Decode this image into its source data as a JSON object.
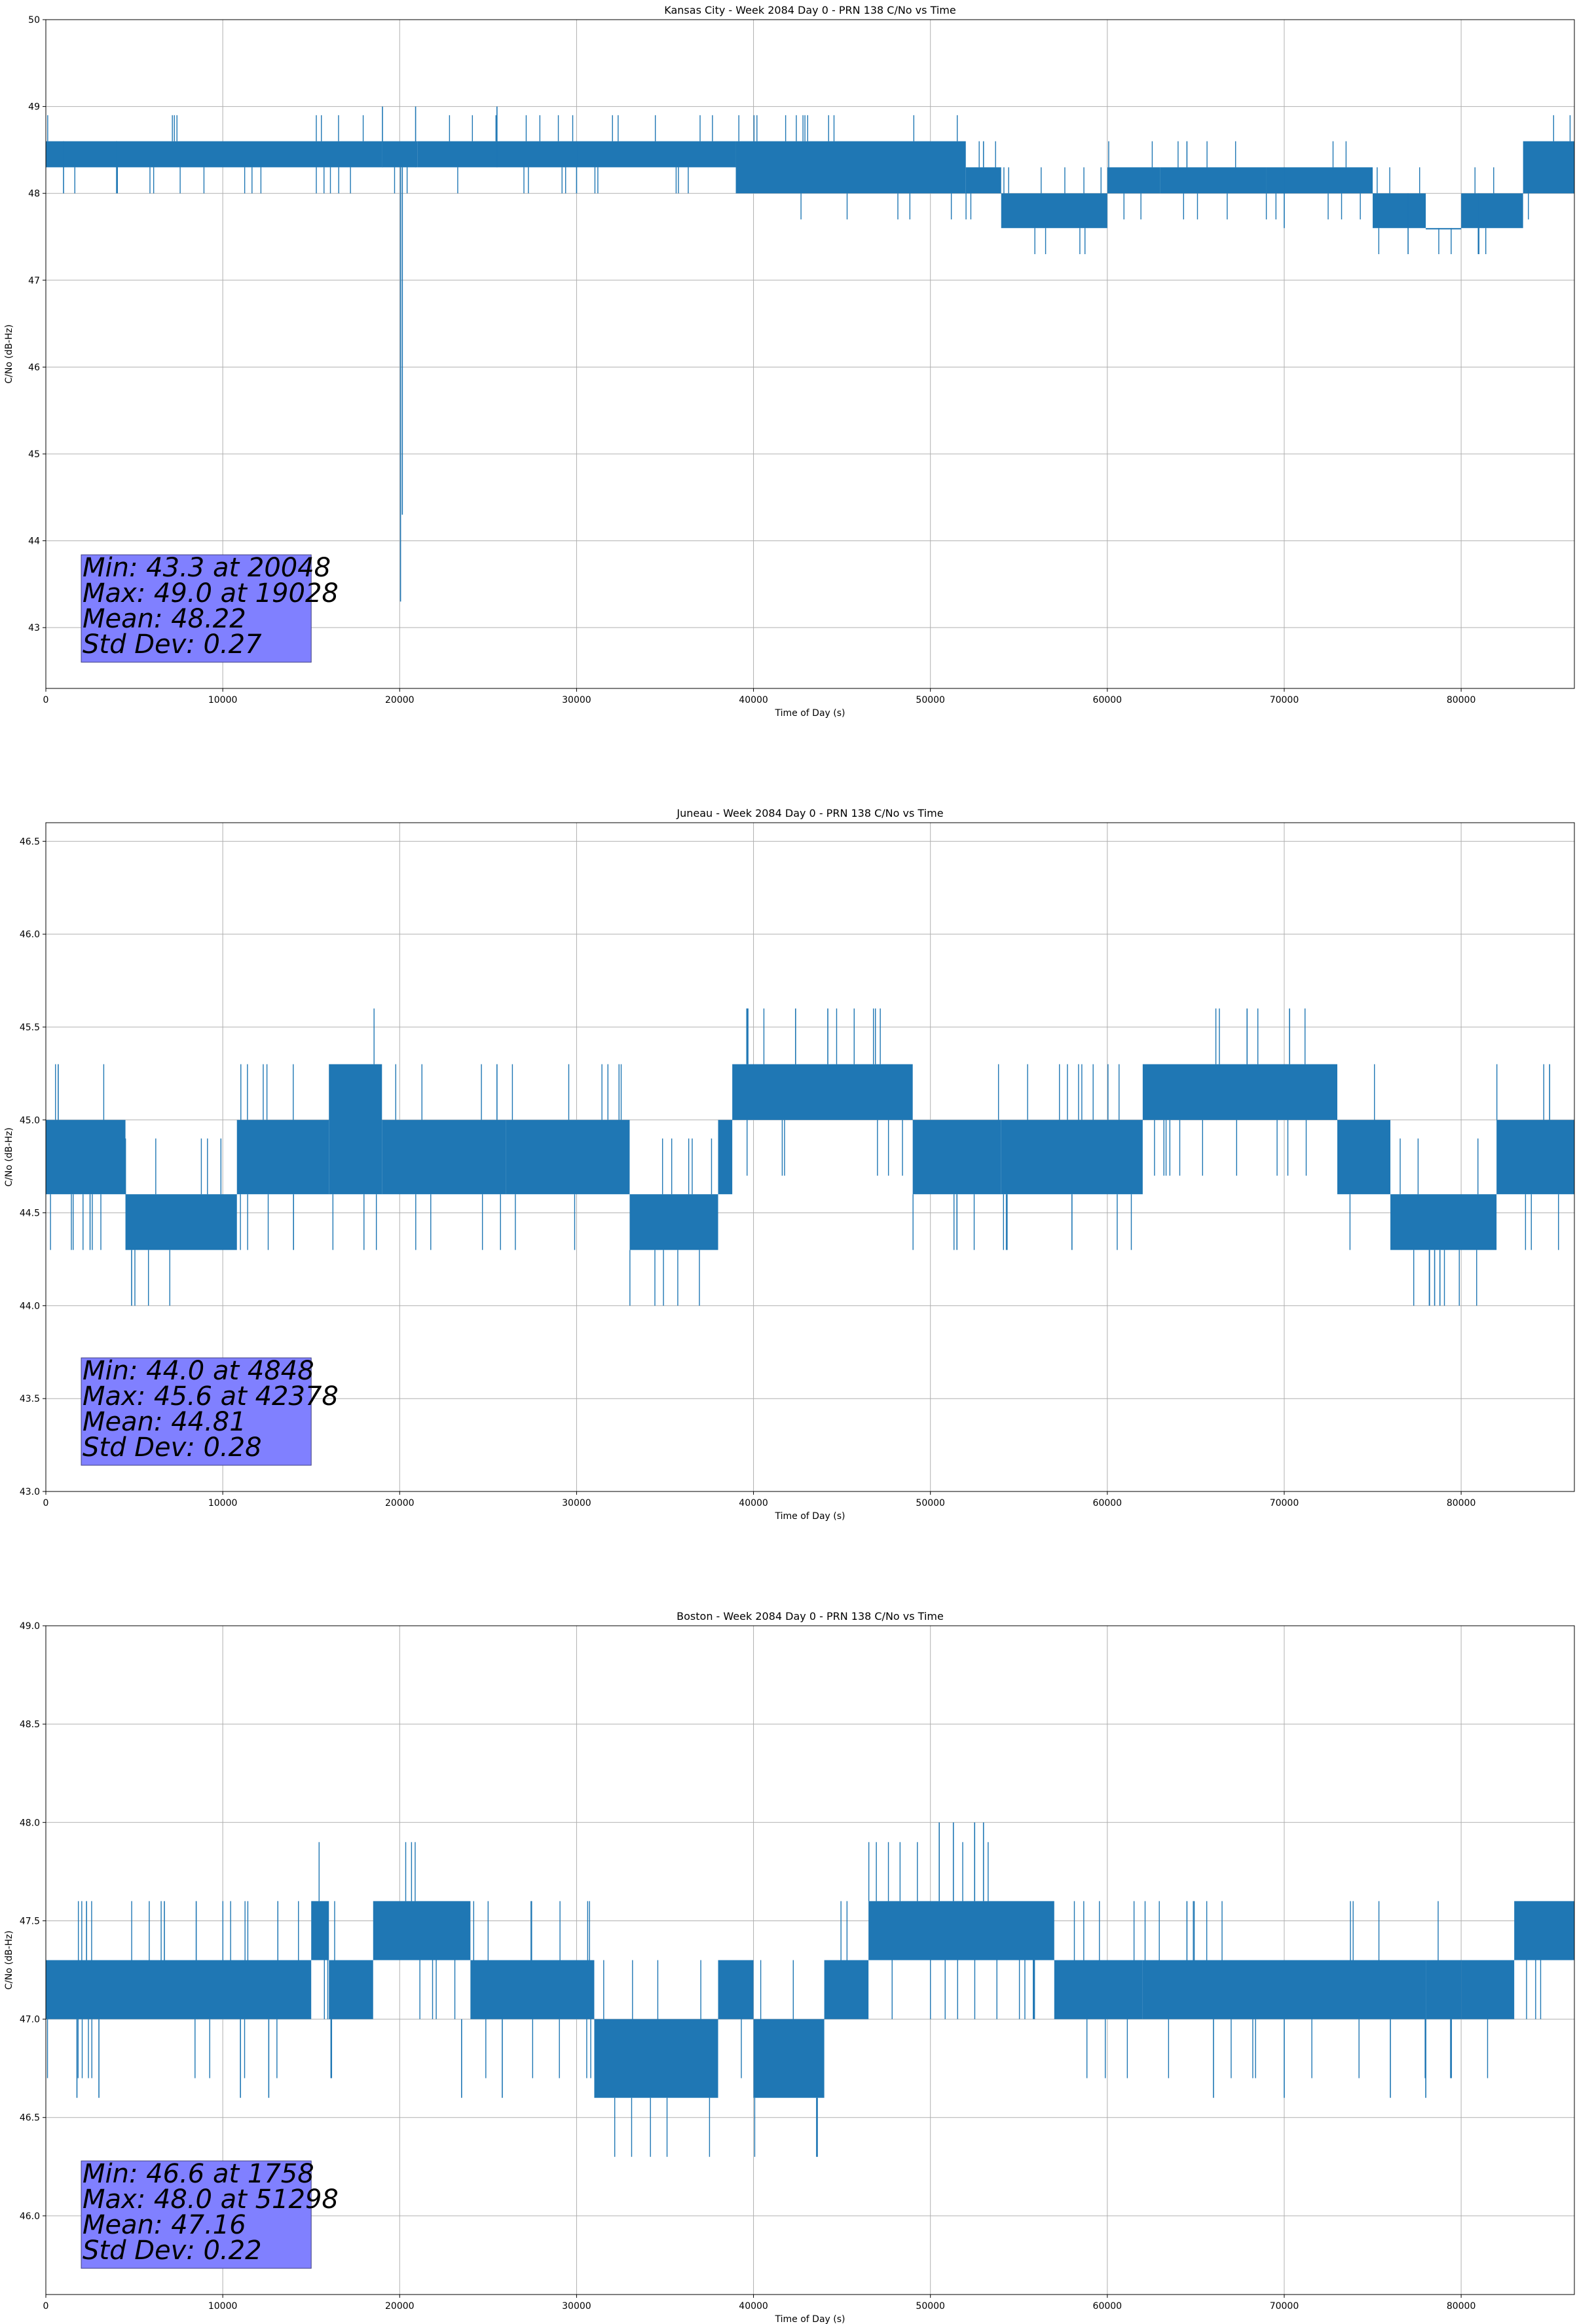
{
  "chart_data": [
    {
      "type": "line",
      "title": "Kansas City - Week 2084 Day 0 - PRN 138 C/No vs Time",
      "xlabel": "Time of Day (s)",
      "ylabel": "C/No (dB-Hz)",
      "xlim": [
        0,
        86400
      ],
      "ylim": [
        42.3,
        50
      ],
      "x_ticks": [
        0,
        10000,
        20000,
        30000,
        40000,
        50000,
        60000,
        70000,
        80000
      ],
      "y_ticks": [
        43,
        44,
        45,
        46,
        47,
        48,
        49,
        50
      ],
      "y_tick_labels": [
        "43",
        "44",
        "45",
        "46",
        "47",
        "48",
        "49",
        "50"
      ],
      "grid": true,
      "line_color": "#1f77b4",
      "band_segments": [
        {
          "x": [
            0,
            19000
          ],
          "y": [
            48.3,
            48.6
          ]
        },
        {
          "x": [
            19000,
            21000
          ],
          "y": [
            48.3,
            48.6
          ]
        },
        {
          "x": [
            21000,
            30000
          ],
          "y": [
            48.3,
            48.6
          ]
        },
        {
          "x": [
            30000,
            39000
          ],
          "y": [
            48.3,
            48.6
          ]
        },
        {
          "x": [
            39000,
            52000
          ],
          "y": [
            48.0,
            48.6
          ]
        },
        {
          "x": [
            52000,
            54000
          ],
          "y": [
            48.0,
            48.3
          ]
        },
        {
          "x": [
            54000,
            60000
          ],
          "y": [
            47.6,
            48.0
          ]
        },
        {
          "x": [
            60000,
            63000
          ],
          "y": [
            48.0,
            48.3
          ]
        },
        {
          "x": [
            63000,
            69000
          ],
          "y": [
            48.0,
            48.3
          ]
        },
        {
          "x": [
            69000,
            75000
          ],
          "y": [
            48.0,
            48.3
          ]
        },
        {
          "x": [
            75000,
            78000
          ],
          "y": [
            47.6,
            48.0
          ]
        },
        {
          "x": [
            78000,
            80000
          ],
          "y": [
            47.6,
            47.6
          ]
        },
        {
          "x": [
            80000,
            83500
          ],
          "y": [
            47.6,
            48.0
          ]
        },
        {
          "x": [
            83500,
            86400
          ],
          "y": [
            48.0,
            48.6
          ]
        }
      ],
      "spikes": [
        {
          "x": 19028,
          "y": [
            48.3,
            49.0
          ]
        },
        {
          "x": 20048,
          "y": [
            48.3,
            43.3
          ]
        },
        {
          "x": 20150,
          "y": [
            48.3,
            44.3
          ]
        },
        {
          "x": 20900,
          "y": [
            48.3,
            49.0
          ]
        },
        {
          "x": 25500,
          "y": [
            48.3,
            49.0
          ]
        },
        {
          "x": 1000,
          "y": [
            48.6,
            48.0
          ]
        },
        {
          "x": 4000,
          "y": [
            48.6,
            48.0
          ]
        },
        {
          "x": 30000,
          "y": [
            48.6,
            48.0
          ]
        },
        {
          "x": 70000,
          "y": [
            48.3,
            47.6
          ]
        },
        {
          "x": 77000,
          "y": [
            48.0,
            47.3
          ]
        },
        {
          "x": 81000,
          "y": [
            48.0,
            47.3
          ]
        },
        {
          "x": 53000,
          "y": [
            48.3,
            48.6
          ]
        },
        {
          "x": 64500,
          "y": [
            48.3,
            48.6
          ]
        }
      ],
      "stats_box": {
        "x_range": [
          2000,
          15000
        ],
        "lines": [
          "Min: 43.3 at 20048",
          "Max: 49.0 at 19028",
          "Mean: 48.22",
          "Std Dev: 0.27"
        ],
        "color": "#8080ff"
      }
    },
    {
      "type": "line",
      "title": "Juneau - Week 2084 Day 0 - PRN 138 C/No vs Time",
      "xlabel": "Time of Day (s)",
      "ylabel": "C/No (dB-Hz)",
      "xlim": [
        0,
        86400
      ],
      "ylim": [
        43.0,
        46.6
      ],
      "x_ticks": [
        0,
        10000,
        20000,
        30000,
        40000,
        50000,
        60000,
        70000,
        80000
      ],
      "y_ticks": [
        43.0,
        43.5,
        44.0,
        44.5,
        45.0,
        45.5,
        46.0,
        46.5
      ],
      "y_tick_labels": [
        "43.0",
        "43.5",
        "44.0",
        "44.5",
        "45.0",
        "45.5",
        "46.0",
        "46.5"
      ],
      "grid": true,
      "line_color": "#1f77b4",
      "band_segments": [
        {
          "x": [
            0,
            4500
          ],
          "y": [
            44.6,
            45.0
          ]
        },
        {
          "x": [
            4500,
            10800
          ],
          "y": [
            44.3,
            44.6
          ]
        },
        {
          "x": [
            10800,
            16000
          ],
          "y": [
            44.6,
            45.0
          ]
        },
        {
          "x": [
            16000,
            19000
          ],
          "y": [
            44.6,
            45.3
          ]
        },
        {
          "x": [
            19000,
            26000
          ],
          "y": [
            44.6,
            45.0
          ]
        },
        {
          "x": [
            26000,
            33000
          ],
          "y": [
            44.6,
            45.0
          ]
        },
        {
          "x": [
            33000,
            38000
          ],
          "y": [
            44.3,
            44.6
          ]
        },
        {
          "x": [
            38000,
            38800
          ],
          "y": [
            44.6,
            45.0
          ]
        },
        {
          "x": [
            38800,
            49000
          ],
          "y": [
            45.0,
            45.3
          ]
        },
        {
          "x": [
            49000,
            54000
          ],
          "y": [
            44.6,
            45.0
          ]
        },
        {
          "x": [
            54000,
            62000
          ],
          "y": [
            44.6,
            45.0
          ]
        },
        {
          "x": [
            62000,
            73000
          ],
          "y": [
            45.0,
            45.3
          ]
        },
        {
          "x": [
            73000,
            76000
          ],
          "y": [
            44.6,
            45.0
          ]
        },
        {
          "x": [
            76000,
            82000
          ],
          "y": [
            44.3,
            44.6
          ]
        },
        {
          "x": [
            82000,
            86400
          ],
          "y": [
            44.6,
            45.0
          ]
        }
      ],
      "spikes": [
        {
          "x": 4848,
          "y": [
            44.3,
            44.0
          ]
        },
        {
          "x": 42378,
          "y": [
            45.3,
            45.6
          ]
        },
        {
          "x": 44200,
          "y": [
            45.3,
            45.6
          ]
        },
        {
          "x": 67900,
          "y": [
            45.3,
            45.6
          ]
        },
        {
          "x": 70300,
          "y": [
            45.3,
            45.6
          ]
        },
        {
          "x": 78200,
          "y": [
            44.3,
            44.0
          ]
        },
        {
          "x": 78500,
          "y": [
            44.3,
            44.0
          ]
        },
        {
          "x": 78800,
          "y": [
            44.3,
            44.0
          ]
        },
        {
          "x": 700,
          "y": [
            45.0,
            45.3
          ]
        },
        {
          "x": 2500,
          "y": [
            44.6,
            44.3
          ]
        },
        {
          "x": 14000,
          "y": [
            44.6,
            44.3
          ]
        },
        {
          "x": 25500,
          "y": [
            45.0,
            45.3
          ]
        },
        {
          "x": 51500,
          "y": [
            44.6,
            44.3
          ]
        },
        {
          "x": 58000,
          "y": [
            44.6,
            44.3
          ]
        },
        {
          "x": 85000,
          "y": [
            45.0,
            45.3
          ]
        }
      ],
      "stats_box": {
        "x_range": [
          2000,
          15000
        ],
        "lines": [
          "Min: 44.0 at 4848",
          "Max: 45.6 at 42378",
          "Mean: 44.81",
          "Std Dev: 0.28"
        ],
        "color": "#8080ff"
      }
    },
    {
      "type": "line",
      "title": "Boston - Week 2084 Day 0 - PRN 138 C/No vs Time",
      "xlabel": "Time of Day (s)",
      "ylabel": "C/No (dB-Hz)",
      "xlim": [
        0,
        86400
      ],
      "ylim": [
        45.6,
        49.0
      ],
      "x_ticks": [
        0,
        10000,
        20000,
        30000,
        40000,
        50000,
        60000,
        70000,
        80000
      ],
      "y_ticks": [
        46.0,
        46.5,
        47.0,
        47.5,
        48.0,
        48.5,
        49.0
      ],
      "y_tick_labels": [
        "46.0",
        "46.5",
        "47.0",
        "47.5",
        "48.0",
        "48.5",
        "49.0"
      ],
      "grid": true,
      "line_color": "#1f77b4",
      "band_segments": [
        {
          "x": [
            0,
            15000
          ],
          "y": [
            47.0,
            47.3
          ]
        },
        {
          "x": [
            15000,
            16000
          ],
          "y": [
            47.3,
            47.6
          ]
        },
        {
          "x": [
            16000,
            18500
          ],
          "y": [
            47.0,
            47.3
          ]
        },
        {
          "x": [
            18500,
            24000
          ],
          "y": [
            47.3,
            47.6
          ]
        },
        {
          "x": [
            24000,
            31000
          ],
          "y": [
            47.0,
            47.3
          ]
        },
        {
          "x": [
            31000,
            38000
          ],
          "y": [
            46.6,
            47.0
          ]
        },
        {
          "x": [
            38000,
            40000
          ],
          "y": [
            47.0,
            47.3
          ]
        },
        {
          "x": [
            40000,
            44000
          ],
          "y": [
            46.6,
            47.0
          ]
        },
        {
          "x": [
            44000,
            46500
          ],
          "y": [
            47.0,
            47.3
          ]
        },
        {
          "x": [
            46500,
            57000
          ],
          "y": [
            47.3,
            47.6
          ]
        },
        {
          "x": [
            57000,
            62000
          ],
          "y": [
            47.0,
            47.3
          ]
        },
        {
          "x": [
            62000,
            78000
          ],
          "y": [
            47.0,
            47.3
          ]
        },
        {
          "x": [
            78000,
            80000
          ],
          "y": [
            47.0,
            47.3
          ]
        },
        {
          "x": [
            80000,
            83000
          ],
          "y": [
            47.0,
            47.3
          ]
        },
        {
          "x": [
            83000,
            86400
          ],
          "y": [
            47.3,
            47.6
          ]
        }
      ],
      "spikes": [
        {
          "x": 1758,
          "y": [
            47.0,
            46.6
          ]
        },
        {
          "x": 3000,
          "y": [
            47.0,
            46.6
          ]
        },
        {
          "x": 2300,
          "y": [
            47.3,
            47.6
          ]
        },
        {
          "x": 6700,
          "y": [
            47.3,
            47.6
          ]
        },
        {
          "x": 8500,
          "y": [
            47.3,
            47.6
          ]
        },
        {
          "x": 11000,
          "y": [
            47.0,
            46.6
          ]
        },
        {
          "x": 12600,
          "y": [
            47.0,
            46.6
          ]
        },
        {
          "x": 23500,
          "y": [
            47.0,
            46.6
          ]
        },
        {
          "x": 25800,
          "y": [
            47.0,
            46.6
          ]
        },
        {
          "x": 50500,
          "y": [
            47.6,
            48.0
          ]
        },
        {
          "x": 51298,
          "y": [
            47.6,
            48.0
          ]
        },
        {
          "x": 52500,
          "y": [
            47.6,
            48.0
          ]
        },
        {
          "x": 53000,
          "y": [
            47.6,
            48.0
          ]
        },
        {
          "x": 64500,
          "y": [
            47.3,
            47.6
          ]
        },
        {
          "x": 66000,
          "y": [
            47.0,
            46.6
          ]
        },
        {
          "x": 70000,
          "y": [
            47.0,
            46.6
          ]
        },
        {
          "x": 76000,
          "y": [
            47.0,
            46.6
          ]
        },
        {
          "x": 78000,
          "y": [
            47.0,
            46.6
          ]
        }
      ],
      "stats_box": {
        "x_range": [
          2000,
          15000
        ],
        "lines": [
          "Min: 46.6 at 1758",
          "Max: 48.0 at 51298",
          "Mean: 47.16",
          "Std Dev: 0.22"
        ],
        "color": "#8080ff"
      }
    }
  ]
}
